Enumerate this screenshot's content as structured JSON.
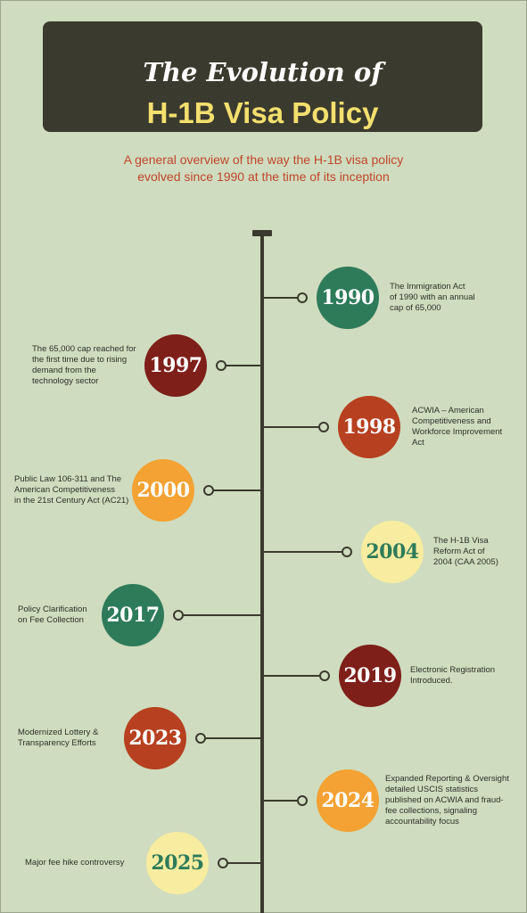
{
  "header": {
    "title_line1": "The Evolution of",
    "title_line2": "H-1B Visa Policy",
    "subtitle_line1": "A general overview of the way the H-1B visa policy",
    "subtitle_line2": "evolved since 1990 at the time of its inception"
  },
  "colors": {
    "green": "#2e7b5a",
    "dark_red": "#7e1f1a",
    "rust": "#b6401f",
    "orange": "#f3a233",
    "cream": "#f7eca0",
    "dark": "#3b3a2e"
  },
  "events": [
    {
      "year": "1990",
      "description": [
        "The Immigration Act",
        "of 1990 with an annual",
        "cap of 65,000"
      ]
    },
    {
      "year": "1997",
      "description": [
        "The 65,000 cap reached for",
        "the first time due to rising",
        "demand from the",
        "technology sector"
      ]
    },
    {
      "year": "1998",
      "description": [
        "ACWIA – American",
        "Competitiveness and",
        "Workforce Improvement",
        "Act"
      ]
    },
    {
      "year": "2000",
      "description": [
        "Public Law 106-311 and The",
        "American Competitiveness",
        "in the 21st Century Act (AC21)"
      ]
    },
    {
      "year": "2004",
      "description": [
        "The H-1B Visa",
        "Reform Act of",
        "2004 (CAA 2005)"
      ]
    },
    {
      "year": "2017",
      "description": [
        "Policy Clarification",
        "on Fee Collection"
      ]
    },
    {
      "year": "2019",
      "description": [
        "Electronic Registration",
        "Introduced."
      ]
    },
    {
      "year": "2023",
      "description": [
        "Modernized Lottery &",
        "Transparency Efforts"
      ]
    },
    {
      "year": "2024",
      "description": [
        "Expanded Reporting & Oversight",
        "detailed USCIS statistics",
        "published on ACWIA and fraud-",
        "fee collections, signaling",
        "accountability focus"
      ]
    },
    {
      "year": "2025",
      "description": [
        "Major fee hike controversy"
      ]
    }
  ]
}
